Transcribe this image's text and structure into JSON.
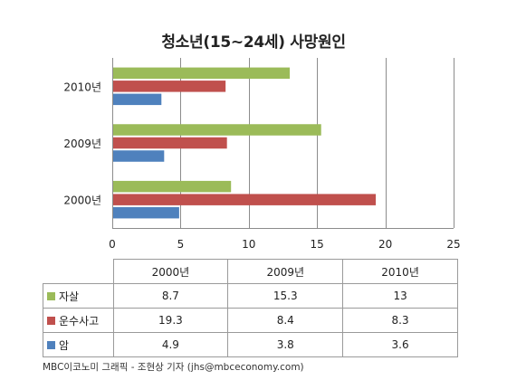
{
  "chart_data": {
    "type": "bar",
    "orientation": "horizontal",
    "title": "청소년(15~24세) 사망원인",
    "categories": [
      "2010년",
      "2009년",
      "2000년"
    ],
    "xlim": [
      0,
      25
    ],
    "x_ticks": [
      "0",
      "5",
      "10",
      "15",
      "20",
      "25"
    ],
    "grid": true,
    "series": [
      {
        "name": "자살",
        "color": "#9bbb59",
        "values": [
          13,
          15.3,
          8.7
        ]
      },
      {
        "name": "운수사고",
        "color": "#c0504d",
        "values": [
          8.3,
          8.4,
          19.3
        ]
      },
      {
        "name": "암",
        "color": "#4f81bd",
        "values": [
          3.6,
          3.8,
          4.9
        ]
      }
    ]
  },
  "table": {
    "headers": [
      "2000년",
      "2009년",
      "2010년"
    ],
    "rows": [
      {
        "label": "자살",
        "color": "#9bbb59",
        "values": [
          "8.7",
          "15.3",
          "13"
        ]
      },
      {
        "label": "운수사고",
        "color": "#c0504d",
        "values": [
          "19.3",
          "8.4",
          "8.3"
        ]
      },
      {
        "label": "암",
        "color": "#4f81bd",
        "values": [
          "4.9",
          "3.8",
          "3.6"
        ]
      }
    ]
  },
  "credit": "MBC이코노미 그래픽 - 조현상 기자 (jhs@mbceconomy.com)"
}
